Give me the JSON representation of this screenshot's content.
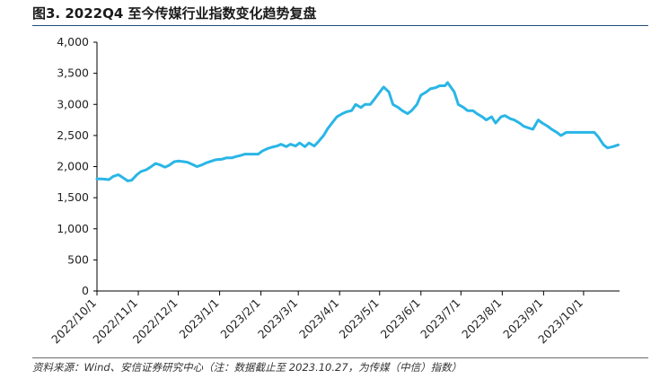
{
  "header": {
    "title": "图3. 2022Q4 至今传媒行业指数变化趋势复盘"
  },
  "footer": {
    "source": "资料来源：Wind、安信证券研究中心（注：数据截止至 2023.10.27，为传媒（中信）指数）"
  },
  "colors": {
    "line": "#29b6e6",
    "axis": "#000000",
    "title_rule": "#1f4e79"
  },
  "chart_data": {
    "type": "line",
    "title": "",
    "xlabel": "",
    "ylabel": "",
    "grid": false,
    "legend": "none",
    "ylim": [
      0,
      4000
    ],
    "xlim": [
      "2022-10-01",
      "2023-10-28"
    ],
    "yticks": [
      0,
      500,
      1000,
      1500,
      2000,
      2500,
      3000,
      3500,
      4000
    ],
    "ytick_labels": [
      "0",
      "500",
      "1,000",
      "1,500",
      "2,000",
      "2,500",
      "3,000",
      "3,500",
      "4,000"
    ],
    "xticks": [
      "2022-10-01",
      "2022-11-01",
      "2022-12-01",
      "2023-01-01",
      "2023-02-01",
      "2023-03-01",
      "2023-04-01",
      "2023-05-01",
      "2023-06-01",
      "2023-07-01",
      "2023-08-01",
      "2023-09-01",
      "2023-10-01"
    ],
    "xtick_labels": [
      "2022/10/1",
      "2022/11/1",
      "2022/12/1",
      "2023/1/1",
      "2023/2/1",
      "2023/3/1",
      "2023/4/1",
      "2023/5/1",
      "2023/6/1",
      "2023/7/1",
      "2023/8/1",
      "2023/9/1",
      "2023/10/1"
    ],
    "series": [
      {
        "points": [
          [
            "2022-10-01",
            1800
          ],
          [
            "2022-10-05",
            1800
          ],
          [
            "2022-10-10",
            1790
          ],
          [
            "2022-10-13",
            1840
          ],
          [
            "2022-10-17",
            1870
          ],
          [
            "2022-10-20",
            1830
          ],
          [
            "2022-10-24",
            1770
          ],
          [
            "2022-10-27",
            1780
          ],
          [
            "2022-10-31",
            1870
          ],
          [
            "2022-11-03",
            1920
          ],
          [
            "2022-11-07",
            1950
          ],
          [
            "2022-11-10",
            1990
          ],
          [
            "2022-11-14",
            2050
          ],
          [
            "2022-11-17",
            2030
          ],
          [
            "2022-11-21",
            1990
          ],
          [
            "2022-11-24",
            2020
          ],
          [
            "2022-11-28",
            2080
          ],
          [
            "2022-12-01",
            2090
          ],
          [
            "2022-12-05",
            2080
          ],
          [
            "2022-12-08",
            2070
          ],
          [
            "2022-12-12",
            2030
          ],
          [
            "2022-12-15",
            2000
          ],
          [
            "2022-12-19",
            2030
          ],
          [
            "2022-12-22",
            2060
          ],
          [
            "2022-12-26",
            2090
          ],
          [
            "2022-12-29",
            2110
          ],
          [
            "2023-01-03",
            2120
          ],
          [
            "2023-01-06",
            2140
          ],
          [
            "2023-01-10",
            2140
          ],
          [
            "2023-01-13",
            2160
          ],
          [
            "2023-01-17",
            2180
          ],
          [
            "2023-01-20",
            2200
          ],
          [
            "2023-01-30",
            2200
          ],
          [
            "2023-02-02",
            2250
          ],
          [
            "2023-02-06",
            2290
          ],
          [
            "2023-02-09",
            2310
          ],
          [
            "2023-02-13",
            2330
          ],
          [
            "2023-02-16",
            2360
          ],
          [
            "2023-02-20",
            2320
          ],
          [
            "2023-02-23",
            2360
          ],
          [
            "2023-02-27",
            2330
          ],
          [
            "2023-03-02",
            2380
          ],
          [
            "2023-03-06",
            2320
          ],
          [
            "2023-03-09",
            2380
          ],
          [
            "2023-03-13",
            2330
          ],
          [
            "2023-03-16",
            2400
          ],
          [
            "2023-03-20",
            2500
          ],
          [
            "2023-03-23",
            2610
          ],
          [
            "2023-03-27",
            2720
          ],
          [
            "2023-03-30",
            2800
          ],
          [
            "2023-04-03",
            2850
          ],
          [
            "2023-04-06",
            2880
          ],
          [
            "2023-04-10",
            2900
          ],
          [
            "2023-04-13",
            3000
          ],
          [
            "2023-04-17",
            2950
          ],
          [
            "2023-04-20",
            3000
          ],
          [
            "2023-04-24",
            3000
          ],
          [
            "2023-04-27",
            3080
          ],
          [
            "2023-05-04",
            3280
          ],
          [
            "2023-05-08",
            3200
          ],
          [
            "2023-05-11",
            3000
          ],
          [
            "2023-05-15",
            2950
          ],
          [
            "2023-05-18",
            2900
          ],
          [
            "2023-05-22",
            2850
          ],
          [
            "2023-05-25",
            2900
          ],
          [
            "2023-05-29",
            3000
          ],
          [
            "2023-06-01",
            3150
          ],
          [
            "2023-06-05",
            3200
          ],
          [
            "2023-06-08",
            3250
          ],
          [
            "2023-06-12",
            3270
          ],
          [
            "2023-06-15",
            3300
          ],
          [
            "2023-06-19",
            3300
          ],
          [
            "2023-06-21",
            3350
          ],
          [
            "2023-06-26",
            3200
          ],
          [
            "2023-06-29",
            3000
          ],
          [
            "2023-07-03",
            2950
          ],
          [
            "2023-07-06",
            2900
          ],
          [
            "2023-07-10",
            2900
          ],
          [
            "2023-07-13",
            2850
          ],
          [
            "2023-07-17",
            2800
          ],
          [
            "2023-07-20",
            2750
          ],
          [
            "2023-07-24",
            2800
          ],
          [
            "2023-07-27",
            2700
          ],
          [
            "2023-07-31",
            2800
          ],
          [
            "2023-08-03",
            2820
          ],
          [
            "2023-08-07",
            2770
          ],
          [
            "2023-08-10",
            2750
          ],
          [
            "2023-08-14",
            2700
          ],
          [
            "2023-08-17",
            2650
          ],
          [
            "2023-08-21",
            2620
          ],
          [
            "2023-08-24",
            2600
          ],
          [
            "2023-08-28",
            2750
          ],
          [
            "2023-08-31",
            2700
          ],
          [
            "2023-09-04",
            2650
          ],
          [
            "2023-09-07",
            2600
          ],
          [
            "2023-09-11",
            2550
          ],
          [
            "2023-09-14",
            2500
          ],
          [
            "2023-09-18",
            2550
          ],
          [
            "2023-09-21",
            2550
          ],
          [
            "2023-09-25",
            2550
          ],
          [
            "2023-09-28",
            2550
          ],
          [
            "2023-10-09",
            2550
          ],
          [
            "2023-10-12",
            2480
          ],
          [
            "2023-10-16",
            2350
          ],
          [
            "2023-10-19",
            2300
          ],
          [
            "2023-10-23",
            2320
          ],
          [
            "2023-10-27",
            2350
          ]
        ]
      }
    ]
  }
}
